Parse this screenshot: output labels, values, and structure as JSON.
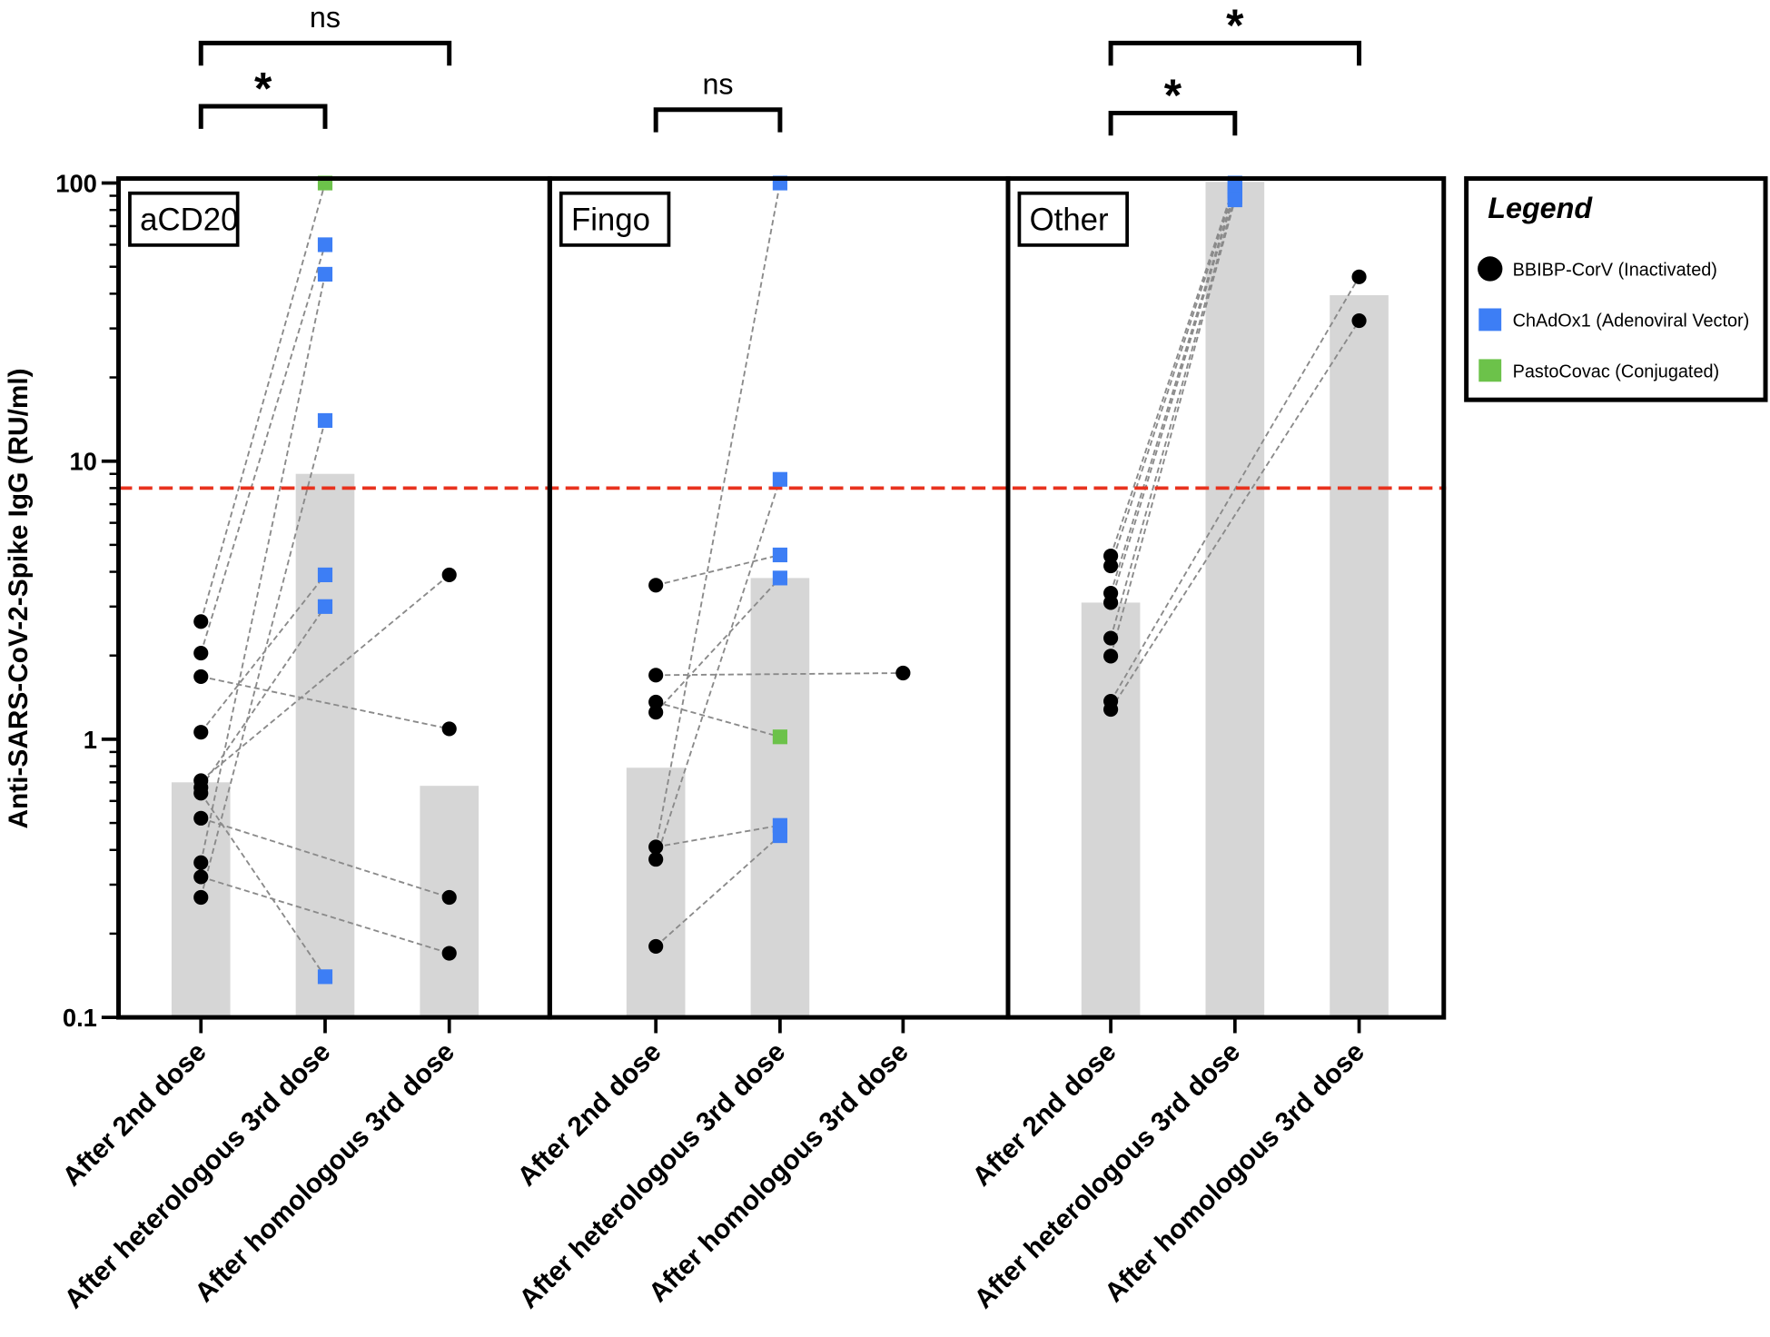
{
  "chart_data": {
    "type": "scatter",
    "ylabel": "Anti-SARS-CoV-2-Spike IgG (RU/ml)",
    "yscale": "log",
    "ylim": [
      0.1,
      100
    ],
    "yticks": [
      "0.1",
      "1",
      "10",
      "100"
    ],
    "threshold": 8,
    "colors": {
      "threshold": "#e8321e",
      "bar": "#d6d6d6",
      "BBIBP": "#000000",
      "ChAdOx1": "#3d7ef5",
      "PastoCovac": "#6cc24a",
      "line": "#8a8a8a"
    },
    "legend": {
      "title": "Legend",
      "placement": "right",
      "entries": [
        {
          "key": "BBIBP",
          "label": "BBIBP-CorV (Inactivated)",
          "marker": "circle"
        },
        {
          "key": "ChAdOx1",
          "label": "ChAdOx1 (Adenoviral Vector)",
          "marker": "square"
        },
        {
          "key": "PastoCovac",
          "label": "PastoCovac (Conjugated)",
          "marker": "square"
        }
      ]
    },
    "categories": [
      "After 2nd dose",
      "After heterologous 3rd dose",
      "After homologous 3rd dose"
    ],
    "panels": [
      {
        "name": "aCD20",
        "bars": [
          0.7,
          9.0,
          0.68
        ],
        "points": [
          [
            {
              "v": 2.65,
              "t": "BBIBP"
            },
            {
              "v": 2.04,
              "t": "BBIBP"
            },
            {
              "v": 1.68,
              "t": "BBIBP"
            },
            {
              "v": 1.06,
              "t": "BBIBP"
            },
            {
              "v": 0.71,
              "t": "BBIBP"
            },
            {
              "v": 0.67,
              "t": "BBIBP"
            },
            {
              "v": 0.64,
              "t": "BBIBP"
            },
            {
              "v": 0.52,
              "t": "BBIBP"
            },
            {
              "v": 0.36,
              "t": "BBIBP"
            },
            {
              "v": 0.32,
              "t": "BBIBP"
            },
            {
              "v": 0.27,
              "t": "BBIBP"
            }
          ],
          [
            {
              "v": 100,
              "t": "PastoCovac"
            },
            {
              "v": 60,
              "t": "ChAdOx1"
            },
            {
              "v": 47,
              "t": "ChAdOx1"
            },
            {
              "v": 14,
              "t": "ChAdOx1"
            },
            {
              "v": 3.9,
              "t": "ChAdOx1"
            },
            {
              "v": 3.0,
              "t": "ChAdOx1"
            },
            {
              "v": 0.14,
              "t": "ChAdOx1"
            }
          ],
          [
            {
              "v": 3.9,
              "t": "BBIBP"
            },
            {
              "v": 1.09,
              "t": "BBIBP"
            },
            {
              "v": 0.27,
              "t": "BBIBP"
            },
            {
              "v": 0.17,
              "t": "BBIBP"
            }
          ]
        ],
        "links": [
          [
            0,
            0,
            1,
            0
          ],
          [
            0,
            1,
            1,
            1
          ],
          [
            0,
            8,
            1,
            2
          ],
          [
            0,
            10,
            1,
            3
          ],
          [
            0,
            3,
            1,
            4
          ],
          [
            0,
            5,
            1,
            5
          ],
          [
            0,
            6,
            1,
            6
          ],
          [
            0,
            4,
            2,
            0
          ],
          [
            0,
            2,
            2,
            1
          ],
          [
            0,
            7,
            2,
            2
          ],
          [
            0,
            9,
            2,
            3
          ]
        ],
        "significance": [
          {
            "from": 0,
            "to": 1,
            "label": "*"
          },
          {
            "from": 0,
            "to": 2,
            "label": "ns"
          }
        ]
      },
      {
        "name": "Fingo",
        "bars": [
          0.79,
          3.8,
          null
        ],
        "points": [
          [
            {
              "v": 3.58,
              "t": "BBIBP"
            },
            {
              "v": 1.7,
              "t": "BBIBP"
            },
            {
              "v": 1.36,
              "t": "BBIBP"
            },
            {
              "v": 1.25,
              "t": "BBIBP"
            },
            {
              "v": 0.41,
              "t": "BBIBP"
            },
            {
              "v": 0.37,
              "t": "BBIBP"
            },
            {
              "v": 0.18,
              "t": "BBIBP"
            }
          ],
          [
            {
              "v": 100,
              "t": "ChAdOx1"
            },
            {
              "v": 8.6,
              "t": "ChAdOx1"
            },
            {
              "v": 4.6,
              "t": "ChAdOx1"
            },
            {
              "v": 3.8,
              "t": "ChAdOx1"
            },
            {
              "v": 1.02,
              "t": "PastoCovac"
            },
            {
              "v": 0.49,
              "t": "ChAdOx1"
            },
            {
              "v": 0.45,
              "t": "ChAdOx1"
            }
          ],
          [
            {
              "v": 1.73,
              "t": "BBIBP"
            }
          ]
        ],
        "links": [
          [
            0,
            0,
            1,
            2
          ],
          [
            0,
            1,
            2,
            0
          ],
          [
            0,
            4,
            1,
            0
          ],
          [
            0,
            5,
            1,
            1
          ],
          [
            0,
            3,
            1,
            3
          ],
          [
            0,
            2,
            1,
            4
          ],
          [
            0,
            4,
            1,
            5
          ],
          [
            0,
            6,
            1,
            6
          ]
        ],
        "significance": [
          {
            "from": 0,
            "to": 1,
            "label": "ns"
          }
        ]
      },
      {
        "name": "Other",
        "bars": [
          3.1,
          101,
          39.5
        ],
        "points": [
          [
            {
              "v": 4.56,
              "t": "BBIBP"
            },
            {
              "v": 4.2,
              "t": "BBIBP"
            },
            {
              "v": 3.35,
              "t": "BBIBP"
            },
            {
              "v": 3.1,
              "t": "BBIBP"
            },
            {
              "v": 2.31,
              "t": "BBIBP"
            },
            {
              "v": 1.99,
              "t": "BBIBP"
            },
            {
              "v": 1.37,
              "t": "BBIBP"
            },
            {
              "v": 1.28,
              "t": "BBIBP"
            }
          ],
          [
            {
              "v": 100,
              "t": "ChAdOx1"
            },
            {
              "v": 97,
              "t": "ChAdOx1"
            },
            {
              "v": 94,
              "t": "ChAdOx1"
            },
            {
              "v": 92,
              "t": "ChAdOx1"
            },
            {
              "v": 89,
              "t": "ChAdOx1"
            },
            {
              "v": 87,
              "t": "ChAdOx1"
            }
          ],
          [
            {
              "v": 46,
              "t": "BBIBP"
            },
            {
              "v": 32,
              "t": "BBIBP"
            }
          ]
        ],
        "links": [
          [
            0,
            0,
            1,
            0
          ],
          [
            0,
            1,
            1,
            1
          ],
          [
            0,
            2,
            1,
            2
          ],
          [
            0,
            3,
            1,
            3
          ],
          [
            0,
            4,
            1,
            4
          ],
          [
            0,
            5,
            1,
            5
          ],
          [
            0,
            6,
            2,
            0
          ],
          [
            0,
            7,
            2,
            1
          ]
        ],
        "significance": [
          {
            "from": 0,
            "to": 1,
            "label": "*"
          },
          {
            "from": 0,
            "to": 2,
            "label": "*"
          }
        ]
      }
    ]
  }
}
